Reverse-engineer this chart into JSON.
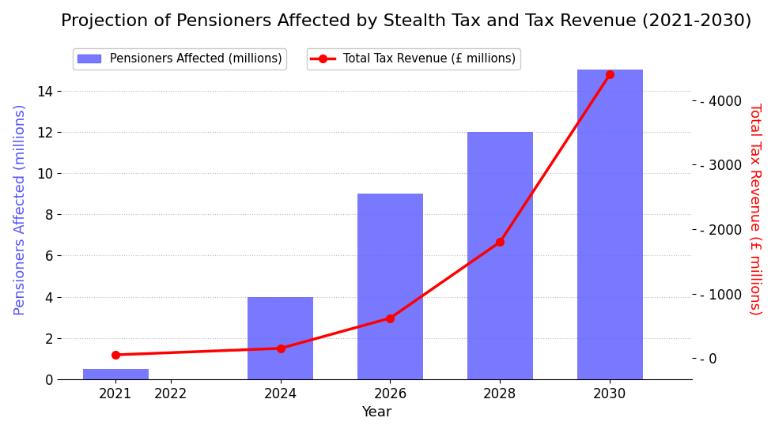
{
  "title": "Projection of Pensioners Affected by Stealth Tax and Tax Revenue (2021-2030)",
  "years": [
    2021,
    2024,
    2026,
    2028,
    2030
  ],
  "pensioners": [
    0.5,
    4.0,
    9.0,
    12.0,
    15.0
  ],
  "tax_revenue": [
    50,
    150,
    620,
    1800,
    4400
  ],
  "bar_color": "#6666ff",
  "line_color": "red",
  "bar_width": 1.2,
  "xlabel": "Year",
  "ylabel_left": "Pensioners Affected (millions)",
  "ylabel_right": "Total Tax Revenue (£ millions)",
  "legend_bar": "Pensioners Affected (millions)",
  "legend_line": "Total Tax Revenue (£ millions)",
  "ylim_left": [
    0,
    16.5
  ],
  "ylim_right": [
    -330,
    4950
  ],
  "yticks_left": [
    0,
    2,
    4,
    6,
    8,
    10,
    12,
    14
  ],
  "yticks_right": [
    0,
    1000,
    2000,
    3000,
    4000
  ],
  "xticks": [
    2021,
    2022,
    2024,
    2026,
    2028,
    2030
  ],
  "xlim": [
    2020.0,
    2031.5
  ],
  "background_color": "#ffffff",
  "grid_color": "#aaaaaa",
  "title_fontsize": 16,
  "axis_label_fontsize": 13,
  "tick_fontsize": 12
}
